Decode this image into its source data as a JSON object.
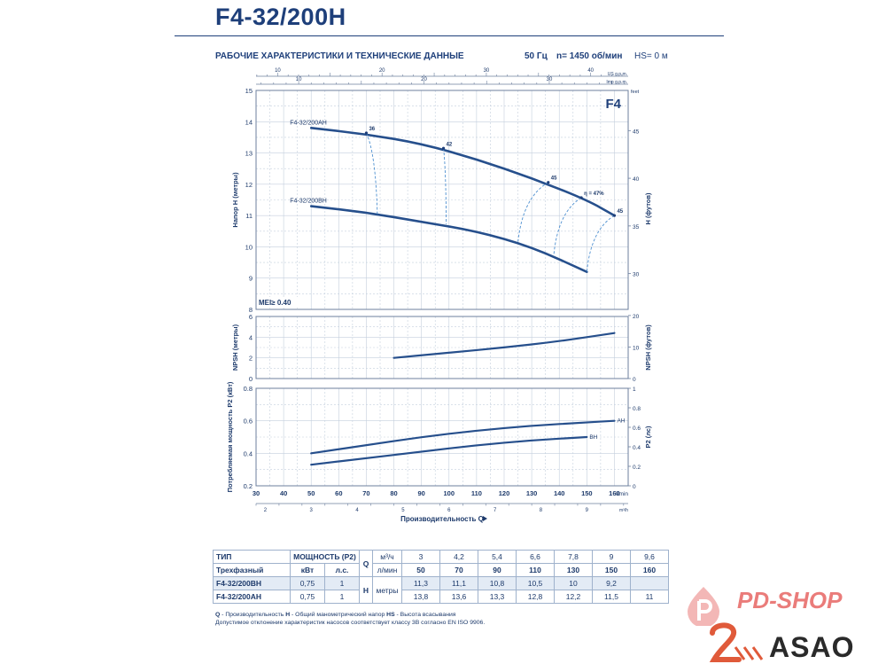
{
  "header": {
    "title": "F4-32/200H",
    "subtitle": "РАБОЧИЕ ХАРАКТЕРИСТИКИ И ТЕХНИЧЕСКИЕ ДАННЫЕ",
    "freq": "50 Гц",
    "speed": "n= 1450 об/мин",
    "hs": "HS= 0 м"
  },
  "chart_data": [
    {
      "type": "line",
      "id": "head",
      "ylabel": "Напор H (метры)",
      "y2label": "H (футов)",
      "ylim": [
        8,
        15
      ],
      "yticks": [
        8,
        9,
        10,
        11,
        12,
        13,
        14,
        15
      ],
      "y2ticks": [
        "30",
        "35",
        "40",
        "45"
      ],
      "y2unit": "feet",
      "xlim": [
        30,
        165
      ],
      "badge": "F4",
      "mei": "MEI≥ 0.40",
      "series": [
        {
          "name": "F4-32/200AH",
          "x": [
            50,
            70,
            90,
            110,
            130,
            150,
            160
          ],
          "y": [
            13.8,
            13.6,
            13.3,
            12.8,
            12.2,
            11.5,
            11.0
          ]
        },
        {
          "name": "F4-32/200BH",
          "x": [
            50,
            70,
            90,
            110,
            130,
            150
          ],
          "y": [
            11.3,
            11.1,
            10.8,
            10.5,
            10.0,
            9.2
          ]
        }
      ],
      "efficiency": [
        {
          "label": "36",
          "top": [
            70,
            13.64
          ],
          "bottom": [
            74,
            11.05
          ]
        },
        {
          "label": "42",
          "top": [
            98,
            13.15
          ],
          "bottom": [
            99,
            10.72
          ]
        },
        {
          "label": "45",
          "top": [
            136,
            12.06
          ],
          "bottom": [
            125,
            10.13
          ]
        },
        {
          "label": "η = 47%",
          "top": [
            148,
            11.57
          ],
          "bottom": [
            138,
            9.73
          ]
        },
        {
          "label": "45",
          "top": [
            160,
            11.0
          ],
          "bottom": [
            150,
            9.2
          ]
        }
      ],
      "top_axis_us": {
        "unit": "US g.p.m.",
        "ticks": [
          10,
          20,
          30,
          40
        ]
      },
      "top_axis_imp": {
        "unit": "Imp g.p.m.",
        "ticks": [
          10,
          20,
          30
        ]
      }
    },
    {
      "type": "line",
      "id": "npsh",
      "ylabel": "NPSH (метры)",
      "y2label": "NPSH (футов)",
      "ylim": [
        0,
        6
      ],
      "yticks": [
        0,
        2,
        4,
        6
      ],
      "y2ticks": [
        "0",
        "10",
        "20"
      ],
      "series": [
        {
          "name": "NPSH",
          "x": [
            80,
            100,
            120,
            140,
            160
          ],
          "y": [
            2.0,
            2.5,
            3.0,
            3.6,
            4.4
          ]
        }
      ]
    },
    {
      "type": "line",
      "id": "power",
      "ylabel": "Потребляемая мощность P2 (кВт)",
      "y2label": "P2 (лс)",
      "ylim": [
        0.2,
        0.8
      ],
      "yticks": [
        "0.2",
        "0.4",
        "0.6",
        "0.8"
      ],
      "y2ticks": [
        "0",
        "0.2",
        "0.4",
        "0.6",
        "0.8",
        "1"
      ],
      "series": [
        {
          "name": "AH",
          "x": [
            50,
            70,
            90,
            110,
            130,
            150,
            160
          ],
          "y": [
            0.4,
            0.45,
            0.5,
            0.54,
            0.57,
            0.59,
            0.6
          ]
        },
        {
          "name": "BH",
          "x": [
            50,
            70,
            90,
            110,
            130,
            150
          ],
          "y": [
            0.33,
            0.37,
            0.41,
            0.45,
            0.48,
            0.5
          ]
        }
      ],
      "xticks": [
        30,
        40,
        50,
        60,
        70,
        80,
        90,
        100,
        110,
        120,
        130,
        140,
        150,
        160
      ],
      "xunit": "l/min",
      "m3h_ticks": [
        2,
        3,
        4,
        5,
        6,
        7,
        8,
        9
      ],
      "m3h_unit": "m³/h",
      "xlabel": "Производительность Q"
    }
  ],
  "table": {
    "h_tip": "ТИП",
    "h_power": "МОЩНОСТЬ (P2)",
    "h_q": "Q",
    "u_m3": "м³/ч",
    "q_m3": [
      "3",
      "4,2",
      "5,4",
      "6,6",
      "7,8",
      "9",
      "9,6"
    ],
    "h_3phase": "Трехфазный",
    "h_kw": "кВт",
    "h_hp": "л.с.",
    "u_lmin": "л/мин",
    "q_l": [
      "50",
      "70",
      "90",
      "110",
      "130",
      "150",
      "160"
    ],
    "h_h": "H",
    "u_m": "метры",
    "rows": [
      {
        "model": "F4-32/200BH",
        "kw": "0,75",
        "hp": "1",
        "h": [
          "11,3",
          "11,1",
          "10,8",
          "10,5",
          "10",
          "9,2",
          ""
        ]
      },
      {
        "model": "F4-32/200AH",
        "kw": "0,75",
        "hp": "1",
        "h": [
          "13,8",
          "13,6",
          "13,3",
          "12,8",
          "12,2",
          "11,5",
          "11"
        ]
      }
    ]
  },
  "notes": {
    "n_q": "Q",
    "n_q_text": " - Производительность  ",
    "n_h": "H",
    "n_h_text": " - Общий манометрический напор  ",
    "n_hs": "HS",
    "n_hs_text": " - Высота всасывания",
    "line2": "Допустимое отклонение характеристик насосов соответствует классу 3B согласно EN ISO 9906."
  },
  "logos": {
    "pd_shop": "PD-SHOP",
    "asao": "ASAO",
    "pd_color": "#ea7c7a"
  }
}
